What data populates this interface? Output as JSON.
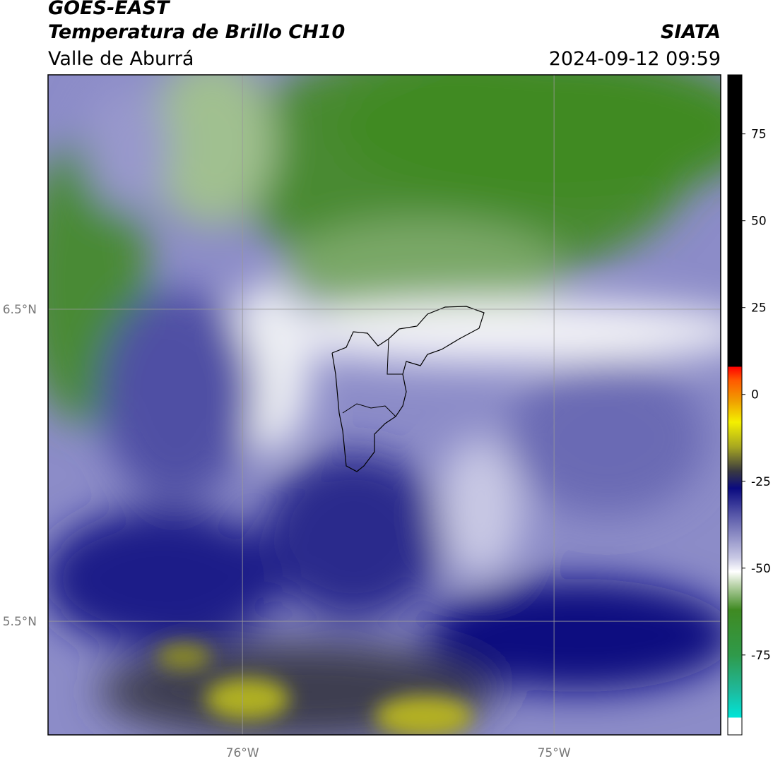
{
  "map": {
    "title": "GOES-EAST",
    "subtitle": "Temperatura de Brillo CH10",
    "region": "Valle de Aburrá",
    "source": "SIATA",
    "datetime": "2024-09-12 09:59",
    "lonlim": [
      -76.624,
      -74.465
    ],
    "latlim": [
      5.136,
      7.251
    ],
    "lon_ticks": [
      {
        "value": -76,
        "label": "76°W"
      },
      {
        "value": -75,
        "label": "75°W"
      }
    ],
    "lat_ticks": [
      {
        "value": 6.5,
        "label": "6.5°N"
      },
      {
        "value": 5.5,
        "label": "5.5°N"
      }
    ],
    "grid": true,
    "colorbar": {
      "lim": [
        -98,
        92
      ],
      "ticks": [
        75,
        50,
        25,
        0,
        -25,
        -50,
        -75
      ],
      "stops": [
        [
          -98,
          "#ffffff"
        ],
        [
          -93,
          "#ffffff"
        ],
        [
          -93,
          "#00e5d8"
        ],
        [
          -85,
          "#1fb89a"
        ],
        [
          -75,
          "#2f9a4a"
        ],
        [
          -62,
          "#3f8a22"
        ],
        [
          -55,
          "#b8d2a8"
        ],
        [
          -51,
          "#ffffff"
        ],
        [
          -47,
          "#c8c8e4"
        ],
        [
          -35,
          "#5a5aaa"
        ],
        [
          -27,
          "#0a0a80"
        ],
        [
          -22,
          "#3a3a40"
        ],
        [
          -15,
          "#a8a820"
        ],
        [
          -8,
          "#f4f000"
        ],
        [
          -2,
          "#f0a000"
        ],
        [
          4,
          "#ff5a00"
        ],
        [
          8,
          "#ff0000"
        ],
        [
          8,
          "#000000"
        ],
        [
          92,
          "#000000"
        ]
      ]
    }
  }
}
